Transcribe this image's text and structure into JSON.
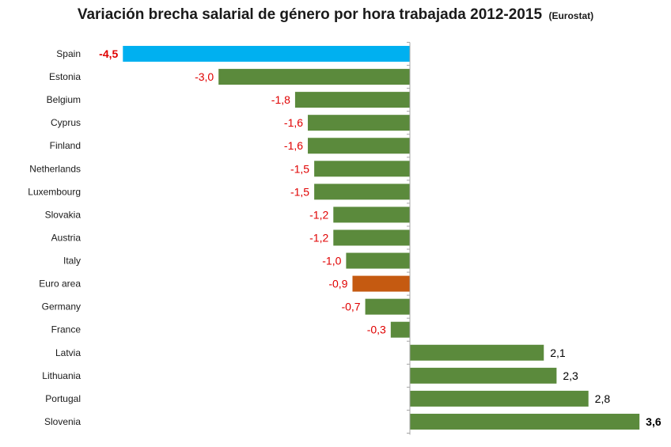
{
  "title": "Variación brecha salarial de género por hora trabajada 2012-2015",
  "subtitle": "(Eurostat)",
  "colors": {
    "default_bar": "#5b8a3c",
    "highlight_bar": "#00b0f0",
    "average_bar": "#c55a11",
    "negative_label": "#e00000",
    "positive_label": "#000000",
    "axis": "#a6a6a6",
    "category_text": "#1a1a1a"
  },
  "chart_data": {
    "type": "bar",
    "orientation": "horizontal",
    "grid": false,
    "legend": "none",
    "categories": [
      "Spain",
      "Estonia",
      "Belgium",
      "Cyprus",
      "Finland",
      "Netherlands",
      "Luxembourg",
      "Slovakia",
      "Austria",
      "Italy",
      "Euro area",
      "Germany",
      "France",
      "Latvia",
      "Lithuania",
      "Portugal",
      "Slovenia"
    ],
    "values": [
      -4.5,
      -3.0,
      -1.8,
      -1.6,
      -1.6,
      -1.5,
      -1.5,
      -1.2,
      -1.2,
      -1.0,
      -0.9,
      -0.7,
      -0.3,
      2.1,
      2.3,
      2.8,
      3.6
    ],
    "value_labels": [
      "-4,5",
      "-3,0",
      "-1,8",
      "-1,6",
      "-1,6",
      "-1,5",
      "-1,5",
      "-1,2",
      "-1,2",
      "-1,0",
      "-0,9",
      "-0,7",
      "-0,3",
      "2,1",
      "2,3",
      "2,8",
      "3,6"
    ],
    "highlight": {
      "Spain": "highlight_bar",
      "Euro area": "average_bar"
    },
    "bold_labels": [
      "Spain",
      "Slovenia"
    ],
    "xlim": [
      -4.5,
      3.6
    ]
  }
}
